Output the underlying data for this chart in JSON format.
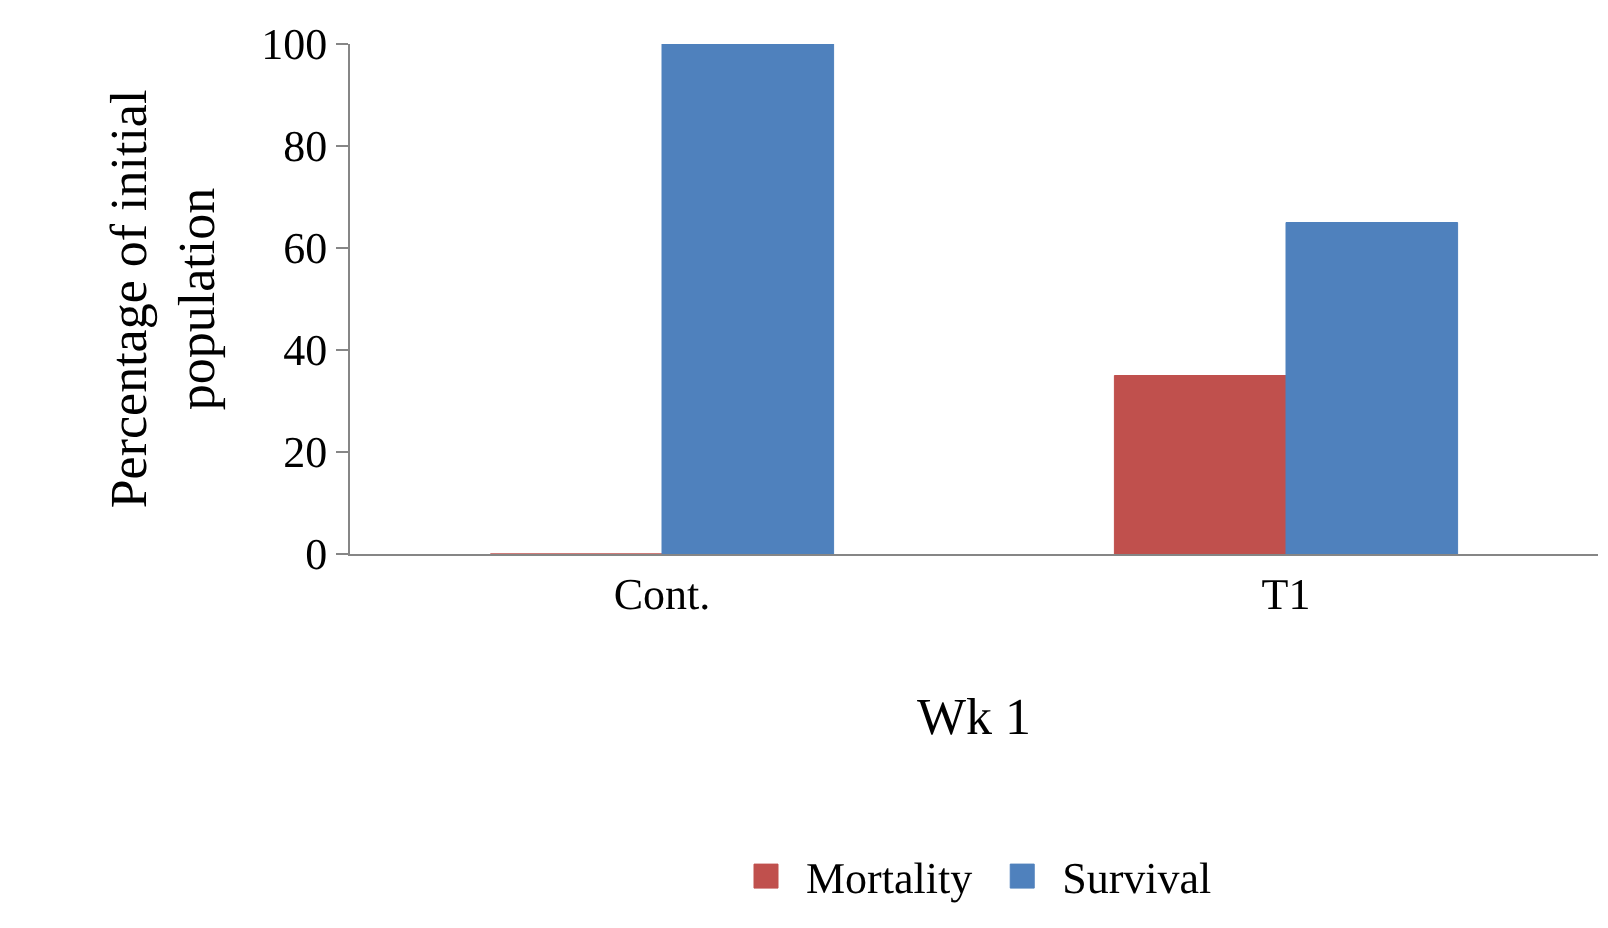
{
  "chart_data": {
    "type": "bar",
    "categories": [
      "Cont.",
      "T1"
    ],
    "xlabel": "Wk 1",
    "ylabel": "Percentage of initial population",
    "series": [
      {
        "name": "Mortality",
        "color": "#c0504d",
        "values": [
          0,
          35
        ]
      },
      {
        "name": "Survival",
        "color": "#4f81bd",
        "values": [
          100,
          65
        ]
      }
    ],
    "ylim": [
      0,
      100
    ],
    "yticks": [
      0,
      20,
      40,
      60,
      80,
      100
    ],
    "legend": "bottom"
  }
}
